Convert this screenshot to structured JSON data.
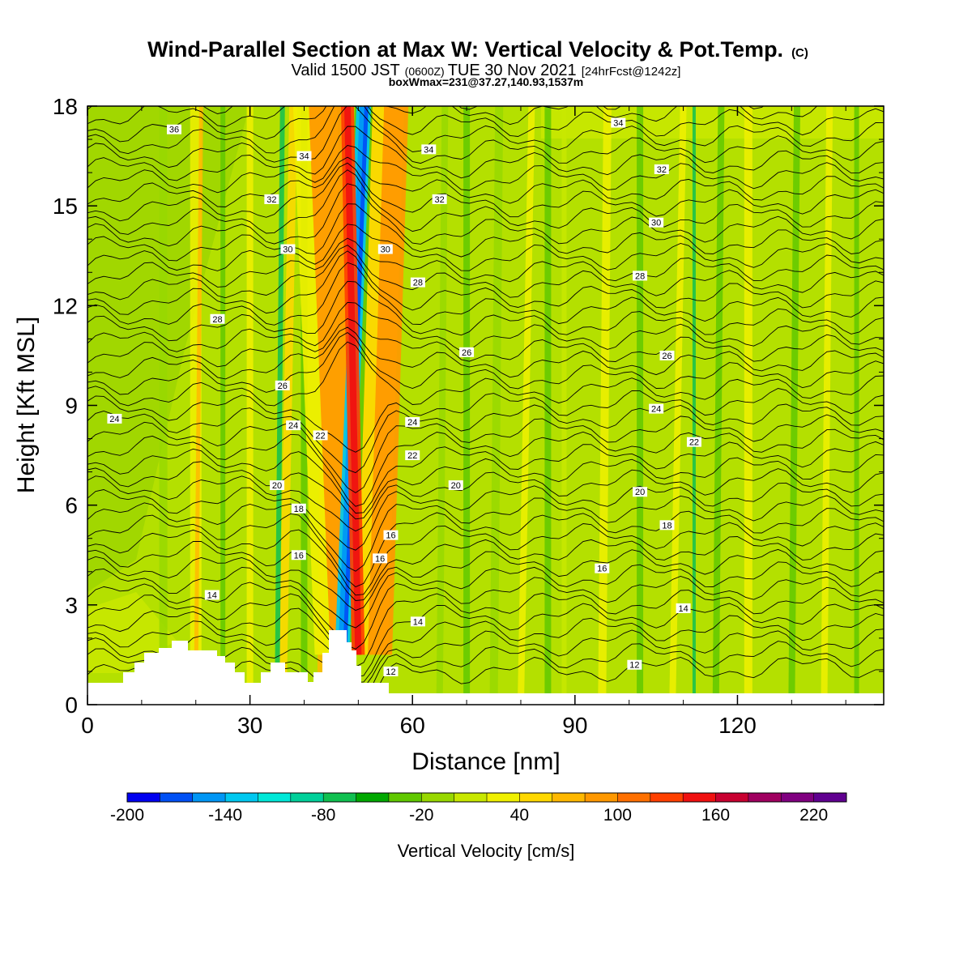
{
  "chart_data": {
    "type": "heatmap",
    "title": "Wind-Parallel Section at Max W: Vertical Velocity & Pot.Temp.",
    "title_mark": "(C)",
    "subtitle": {
      "part1": "Valid 1500 JST",
      "part2": "(0600Z)",
      "part3": "TUE 30 Nov 2021",
      "part4": "[24hrFcst@1242z]"
    },
    "annotation": "boxWmax=231@37.27,140.93,1537m",
    "xlabel": "Distance [nm]",
    "ylabel": "Height [Kft MSL]",
    "xlim": [
      0,
      147
    ],
    "ylim": [
      0,
      18
    ],
    "x_ticks": [
      0,
      30,
      60,
      90,
      120
    ],
    "y_ticks": [
      0,
      3,
      6,
      9,
      12,
      15,
      18
    ],
    "colorbar": {
      "label": "Vertical Velocity [cm/s]",
      "min": -200,
      "max": 240,
      "step": 20,
      "tick_labels": [
        "-200",
        "-140",
        "-80",
        "-20",
        "40",
        "100",
        "160",
        "220"
      ],
      "colors": [
        "#0000f0",
        "#0050f5",
        "#0096f5",
        "#00c8f0",
        "#00e8d8",
        "#00d09a",
        "#10c050",
        "#00a800",
        "#60c800",
        "#98d800",
        "#c8e800",
        "#f0f000",
        "#ffd800",
        "#ffb800",
        "#ff9800",
        "#ff7000",
        "#ff4000",
        "#f01010",
        "#c80030",
        "#a00060",
        "#800080",
        "#600090"
      ]
    },
    "theta_contour_labels": [
      {
        "x": 16,
        "h": 17.3,
        "text": "36"
      },
      {
        "x": 40,
        "h": 16.5,
        "text": "34"
      },
      {
        "x": 63,
        "h": 16.7,
        "text": "34"
      },
      {
        "x": 98,
        "h": 17.5,
        "text": "34"
      },
      {
        "x": 34,
        "h": 15.2,
        "text": "32"
      },
      {
        "x": 65,
        "h": 15.2,
        "text": "32"
      },
      {
        "x": 106,
        "h": 16.1,
        "text": "32"
      },
      {
        "x": 37,
        "h": 13.7,
        "text": "30"
      },
      {
        "x": 55,
        "h": 13.7,
        "text": "30"
      },
      {
        "x": 105,
        "h": 14.5,
        "text": "30"
      },
      {
        "x": 61,
        "h": 12.7,
        "text": "28"
      },
      {
        "x": 102,
        "h": 12.9,
        "text": "28"
      },
      {
        "x": 24,
        "h": 11.6,
        "text": "28"
      },
      {
        "x": 70,
        "h": 10.6,
        "text": "26"
      },
      {
        "x": 107,
        "h": 10.5,
        "text": "26"
      },
      {
        "x": 36,
        "h": 9.6,
        "text": "26"
      },
      {
        "x": 5,
        "h": 8.6,
        "text": "24"
      },
      {
        "x": 38,
        "h": 8.4,
        "text": "24"
      },
      {
        "x": 60,
        "h": 8.5,
        "text": "24"
      },
      {
        "x": 105,
        "h": 8.9,
        "text": "24"
      },
      {
        "x": 43,
        "h": 8.1,
        "text": "22"
      },
      {
        "x": 60,
        "h": 7.5,
        "text": "22"
      },
      {
        "x": 112,
        "h": 7.9,
        "text": "22"
      },
      {
        "x": 35,
        "h": 6.6,
        "text": "20"
      },
      {
        "x": 68,
        "h": 6.6,
        "text": "20"
      },
      {
        "x": 102,
        "h": 6.4,
        "text": "20"
      },
      {
        "x": 39,
        "h": 5.9,
        "text": "18"
      },
      {
        "x": 107,
        "h": 5.4,
        "text": "18"
      },
      {
        "x": 56,
        "h": 5.1,
        "text": "16"
      },
      {
        "x": 39,
        "h": 4.5,
        "text": "16"
      },
      {
        "x": 54,
        "h": 4.4,
        "text": "16"
      },
      {
        "x": 95,
        "h": 4.1,
        "text": "16"
      },
      {
        "x": 23,
        "h": 3.3,
        "text": "14"
      },
      {
        "x": 61,
        "h": 2.5,
        "text": "14"
      },
      {
        "x": 110,
        "h": 2.9,
        "text": "14"
      },
      {
        "x": 56,
        "h": 1.0,
        "text": "12"
      },
      {
        "x": 101,
        "h": 1.2,
        "text": "12"
      }
    ]
  }
}
